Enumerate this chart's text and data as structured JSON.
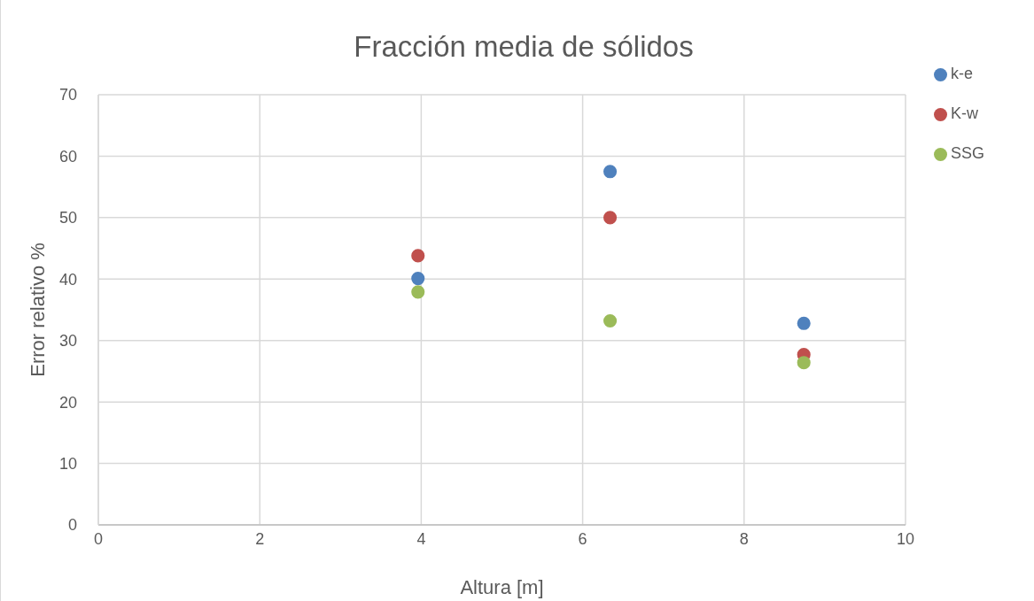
{
  "chart_data": {
    "type": "scatter",
    "title": "Fracción media de sólidos",
    "xlabel": "Altura [m]",
    "ylabel": "Error relativo %",
    "x": [
      3.96,
      6.34,
      8.74
    ],
    "series": [
      {
        "name": "k-e",
        "color": "#4f81bd",
        "values": [
          40.1,
          57.5,
          32.8
        ]
      },
      {
        "name": "K-w",
        "color": "#c0504d",
        "values": [
          43.8,
          50.0,
          27.7
        ]
      },
      {
        "name": "SSG",
        "color": "#9bbb59",
        "values": [
          37.9,
          33.2,
          26.4
        ]
      }
    ],
    "xlim": [
      0,
      10
    ],
    "xticks": [
      0,
      2,
      4,
      6,
      8,
      10
    ],
    "ylim": [
      0,
      70
    ],
    "yticks": [
      0,
      10,
      20,
      30,
      40,
      50,
      60,
      70
    ],
    "grid": true,
    "legend": "right",
    "marker": "circle"
  }
}
